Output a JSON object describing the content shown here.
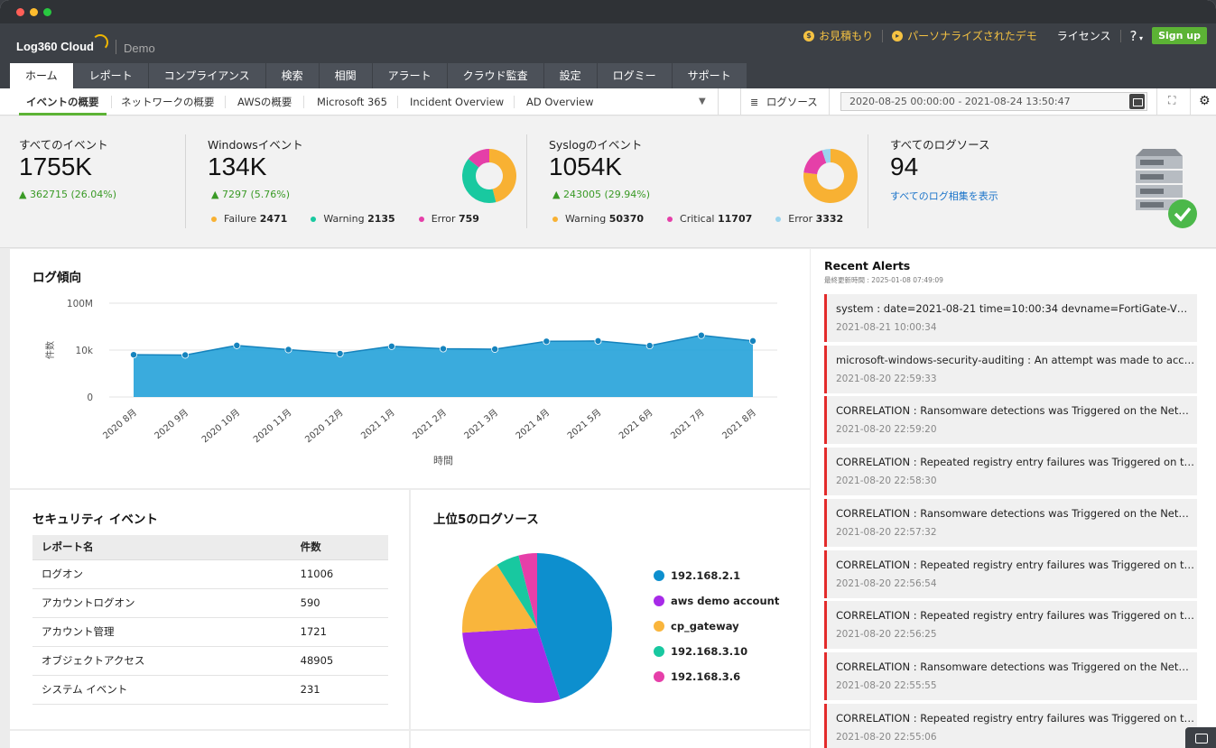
{
  "app": {
    "brand": "Log360 Cloud",
    "edition": "Demo",
    "header_links": {
      "quote": "お見積もり",
      "personalized_demo": "パーソナライズされたデモ",
      "license": "ライセンス",
      "help": "?",
      "signup": "Sign up"
    }
  },
  "main_tabs": [
    "ホーム",
    "レポート",
    "コンプライアンス",
    "検索",
    "相関",
    "アラート",
    "クラウド監査",
    "設定",
    "ログミー",
    "サポート"
  ],
  "sub_tabs": [
    "イベントの概要",
    "ネットワークの概要",
    "AWSの概要",
    "Microsoft 365",
    "Incident Overview",
    "AD Overview"
  ],
  "toolbar": {
    "log_source_label": "ログソース",
    "date_range": "2020-08-25 00:00:00 - 2021-08-24 13:50:47"
  },
  "stats": {
    "all_events": {
      "title": "すべてのイベント",
      "value": "1755K",
      "delta": "362715 (26.04%)"
    },
    "windows": {
      "title": "Windowsイベント",
      "value": "134K",
      "delta": "7297 (5.76%)",
      "legend": [
        {
          "label": "Failure",
          "count": "2471",
          "color": "#f8b133"
        },
        {
          "label": "Warning",
          "count": "2135",
          "color": "#19c9a0"
        },
        {
          "label": "Error",
          "count": "759",
          "color": "#e53fa8"
        }
      ]
    },
    "syslog": {
      "title": "Syslogのイベント",
      "value": "1054K",
      "delta": "243005 (29.94%)",
      "legend": [
        {
          "label": "Warning",
          "count": "50370",
          "color": "#f8b133"
        },
        {
          "label": "Critical",
          "count": "11707",
          "color": "#e53fa8"
        },
        {
          "label": "Error",
          "count": "3332",
          "color": "#9ad4ee"
        }
      ]
    },
    "log_sources": {
      "title": "すべてのログソース",
      "value": "94",
      "link": "すべてのログ相集を表示"
    }
  },
  "log_trend": {
    "title": "ログ傾向",
    "chart_data": {
      "type": "area",
      "xlabel": "時間",
      "ylabel": "件数",
      "y_ticks": [
        "100M",
        "10k",
        "0"
      ],
      "y_scale": "log",
      "color": "#1f9fd8",
      "categories": [
        "2020 8月",
        "2020 9月",
        "2020 10月",
        "2020 11月",
        "2020 12月",
        "2021 1月",
        "2021 2月",
        "2021 3月",
        "2021 4月",
        "2021 5月",
        "2021 6月",
        "2021 7月",
        "2021 8月"
      ],
      "values": [
        4000,
        3800,
        25000,
        11000,
        5000,
        21000,
        13000,
        12000,
        56000,
        60000,
        24000,
        180000,
        60000
      ]
    }
  },
  "security_events": {
    "title": "セキュリティ イベント",
    "columns": [
      "レポート名",
      "件数"
    ],
    "rows": [
      [
        "ログオン",
        "11006"
      ],
      [
        "アカウントログオン",
        "590"
      ],
      [
        "アカウント管理",
        "1721"
      ],
      [
        "オブジェクトアクセス",
        "48905"
      ],
      [
        "システム イベント",
        "231"
      ]
    ]
  },
  "top_sources": {
    "title": "上位5のログソース",
    "chart_data": {
      "type": "pie",
      "labels": [
        "192.168.2.1",
        "aws demo account",
        "cp_gateway",
        "192.168.3.10",
        "192.168.3.6"
      ],
      "values": [
        45,
        29,
        17,
        5,
        4
      ],
      "colors": [
        "#0d8fce",
        "#a72ae8",
        "#f9b53c",
        "#18c8a0",
        "#e63fa9"
      ]
    }
  },
  "recent_alerts": {
    "title": "Recent Alerts",
    "updated": "最終更新時間 : 2025-01-08 07:49:09",
    "items": [
      {
        "msg": "system : date=2021-08-21 time=10:00:34 devname=FortiGate-VM d...",
        "time": "2021-08-21 10:00:34"
      },
      {
        "msg": "microsoft-windows-security-auditing : An attempt was made to acces...",
        "time": "2021-08-20 22:59:33"
      },
      {
        "msg": "CORRELATION : Ransomware detections was Triggered on the Network",
        "time": "2021-08-20 22:59:20"
      },
      {
        "msg": "CORRELATION : Repeated registry entry failures was Triggered on the...",
        "time": "2021-08-20 22:58:30"
      },
      {
        "msg": "CORRELATION : Ransomware detections was Triggered on the Network",
        "time": "2021-08-20 22:57:32"
      },
      {
        "msg": "CORRELATION : Repeated registry entry failures was Triggered on the...",
        "time": "2021-08-20 22:56:54"
      },
      {
        "msg": "CORRELATION : Repeated registry entry failures was Triggered on the...",
        "time": "2021-08-20 22:56:25"
      },
      {
        "msg": "CORRELATION : Ransomware detections was Triggered on the Network",
        "time": "2021-08-20 22:55:55"
      },
      {
        "msg": "CORRELATION : Repeated registry entry failures was Triggered on the...",
        "time": "2021-08-20 22:55:06"
      }
    ]
  },
  "donuts": {
    "windows": [
      {
        "value": 2471,
        "color": "#f8b133"
      },
      {
        "value": 2135,
        "color": "#19c9a0"
      },
      {
        "value": 759,
        "color": "#e53fa8"
      }
    ],
    "syslog": [
      {
        "value": 50370,
        "color": "#f8b133"
      },
      {
        "value": 11707,
        "color": "#e53fa8"
      },
      {
        "value": 3332,
        "color": "#9ad4ee"
      }
    ]
  }
}
